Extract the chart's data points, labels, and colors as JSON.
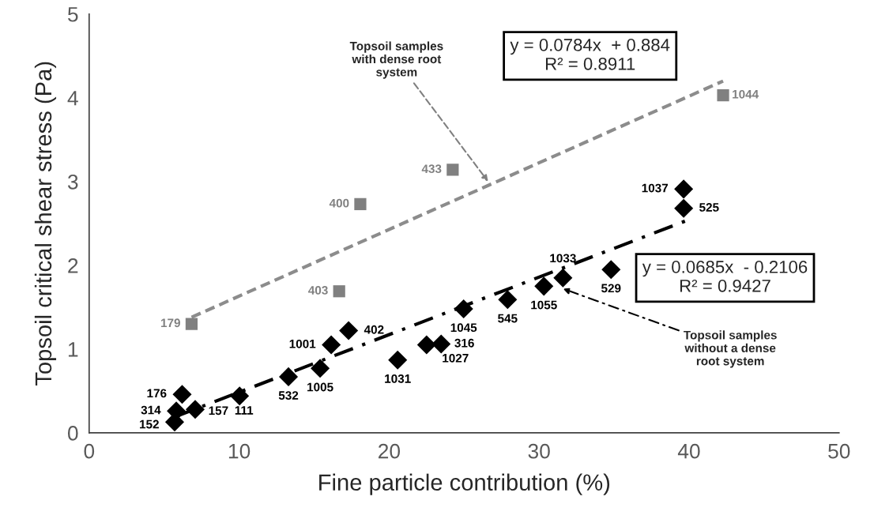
{
  "chart_data": {
    "type": "scatter",
    "xlabel": "Fine particle contribution (%)",
    "ylabel": "Topsoil critical shear stress (Pa)",
    "xlim": [
      0,
      50
    ],
    "xticks": [
      0,
      10,
      20,
      30,
      40,
      50
    ],
    "ylim": [
      0,
      5
    ],
    "yticks": [
      0,
      1,
      2,
      3,
      4,
      5
    ],
    "grid": false,
    "legend": false,
    "series": [
      {
        "marker": "square",
        "color": "#808080",
        "x": [
          6.83,
          16.67,
          18.08,
          24.24,
          42.27
        ],
        "values": [
          1.3,
          1.69,
          2.73,
          3.14,
          4.03
        ]
      },
      {
        "marker": "diamond",
        "color": "#000000",
        "x": [
          6.2,
          5.81,
          5.7,
          7.07,
          10.03,
          13.29,
          15.4,
          16.14,
          17.3,
          20.57,
          22.5,
          23.47,
          24.97,
          27.9,
          30.32,
          31.59,
          34.8,
          39.64,
          39.64
        ],
        "values": [
          0.46,
          0.26,
          0.13,
          0.28,
          0.44,
          0.67,
          0.77,
          1.05,
          1.22,
          0.87,
          1.05,
          1.06,
          1.48,
          1.59,
          1.75,
          1.85,
          1.95,
          2.91,
          2.68
        ]
      },
      {
        "type": "line",
        "marker": "none",
        "line_style": "dashed",
        "color": "#8c8c8c",
        "x": [
          6.83,
          42.27
        ],
        "values": [
          1.38,
          4.2
        ]
      },
      {
        "type": "line",
        "marker": "none",
        "line_style": "dashdot",
        "color": "#000000",
        "x": [
          5.7,
          39.77
        ],
        "values": [
          0.19,
          2.53
        ]
      }
    ],
    "annotations": [
      {
        "text": "Topsoil samples\nwith dense root\nsystem",
        "x": 26.6,
        "y": 3.0
      },
      "y = 0.0784x  + 0.884\nR² = 0.8911",
      "y = 0.0685x  - 0.2106\nR² = 0.9427",
      {
        "text": "Topsoil samples\nwithout a dense\nroot system",
        "x": 31.6,
        "y": 1.72
      },
      {
        "text": "179",
        "x": 6.83,
        "y": 1.3
      },
      {
        "text": "403",
        "x": 16.67,
        "y": 1.69
      },
      {
        "text": "400",
        "x": 18.08,
        "y": 2.73
      },
      {
        "text": "433",
        "x": 24.24,
        "y": 3.14
      },
      {
        "text": "1044",
        "x": 42.27,
        "y": 4.03
      },
      {
        "text": "176",
        "x": 6.2,
        "y": 0.46
      },
      {
        "text": "314",
        "x": 5.81,
        "y": 0.26
      },
      {
        "text": "152",
        "x": 5.7,
        "y": 0.13
      },
      {
        "text": "157",
        "x": 7.07,
        "y": 0.28
      },
      {
        "text": "111",
        "x": 10.03,
        "y": 0.44
      },
      {
        "text": "532",
        "x": 13.29,
        "y": 0.67
      },
      {
        "text": "1005",
        "x": 15.4,
        "y": 0.77
      },
      {
        "text": "1001",
        "x": 16.14,
        "y": 1.05
      },
      {
        "text": "402",
        "x": 17.3,
        "y": 1.22
      },
      {
        "text": "1031",
        "x": 20.57,
        "y": 0.87
      },
      {
        "text": "1027",
        "x": 22.5,
        "y": 1.05
      },
      {
        "text": "316",
        "x": 23.47,
        "y": 1.06
      },
      {
        "text": "1045",
        "x": 24.97,
        "y": 1.48
      },
      {
        "text": "545",
        "x": 27.9,
        "y": 1.59
      },
      {
        "text": "1055",
        "x": 30.32,
        "y": 1.75
      },
      {
        "text": "1033",
        "x": 31.59,
        "y": 1.85
      },
      {
        "text": "529",
        "x": 34.8,
        "y": 1.95
      },
      {
        "text": "1037",
        "x": 39.64,
        "y": 2.91
      },
      {
        "text": "525",
        "x": 39.64,
        "y": 2.68
      }
    ]
  }
}
